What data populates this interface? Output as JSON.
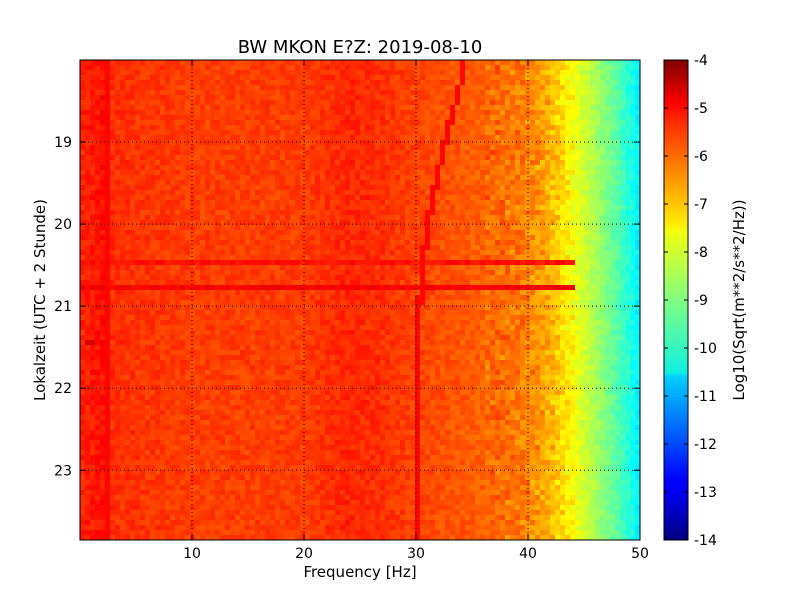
{
  "chart_data": {
    "type": "heatmap",
    "title": "BW MKON E?Z: 2019-08-10",
    "xlabel": "Frequency [Hz]",
    "ylabel": "Lokalzeit (UTC + 2 Stunde)",
    "xlim": [
      0,
      50
    ],
    "ylim": [
      18.0,
      23.85
    ],
    "y_inverted": true,
    "x_ticks": [
      "10",
      "20",
      "30",
      "40",
      "50"
    ],
    "y_ticks": [
      "19",
      "20",
      "21",
      "22",
      "23"
    ],
    "grid": true,
    "colormap": "jet",
    "colorbar": {
      "label": "Log10(Sqrt(m**2/s**2/Hz))",
      "range": [
        -14,
        -4
      ],
      "ticks": [
        "-4",
        "-5",
        "-6",
        "-7",
        "-8",
        "-9",
        "-10",
        "-11",
        "-12",
        "-13",
        "-14"
      ]
    },
    "spectral_level_profile": [
      {
        "freq_hz": 0,
        "log10_psd": -5.6
      },
      {
        "freq_hz": 2,
        "log10_psd": -5.4
      },
      {
        "freq_hz": 3,
        "log10_psd": -5.7
      },
      {
        "freq_hz": 10,
        "log10_psd": -5.85
      },
      {
        "freq_hz": 20,
        "log10_psd": -5.85
      },
      {
        "freq_hz": 24,
        "log10_psd": -5.6
      },
      {
        "freq_hz": 27,
        "log10_psd": -5.7
      },
      {
        "freq_hz": 30,
        "log10_psd": -5.9
      },
      {
        "freq_hz": 36,
        "log10_psd": -6.2
      },
      {
        "freq_hz": 40,
        "log10_psd": -6.5
      },
      {
        "freq_hz": 42,
        "log10_psd": -7.0
      },
      {
        "freq_hz": 44,
        "log10_psd": -7.8
      },
      {
        "freq_hz": 46,
        "log10_psd": -8.6
      },
      {
        "freq_hz": 48,
        "log10_psd": -9.4
      },
      {
        "freq_hz": 50,
        "log10_psd": -10.4
      }
    ],
    "features": [
      {
        "kind": "horizontal-band",
        "time_h": 20.45,
        "log10_psd": -5.4
      },
      {
        "kind": "horizontal-band",
        "time_h": 20.75,
        "log10_psd": -5.2
      },
      {
        "kind": "drifting-line",
        "points": [
          {
            "time_h": 18.1,
            "freq_hz": 34.3
          },
          {
            "time_h": 19.0,
            "freq_hz": 32.6
          },
          {
            "time_h": 20.0,
            "freq_hz": 31.0
          },
          {
            "time_h": 21.0,
            "freq_hz": 30.3
          },
          {
            "time_h": 22.0,
            "freq_hz": 30.1
          },
          {
            "time_h": 23.8,
            "freq_hz": 30.0
          }
        ],
        "log10_psd": -5.3
      },
      {
        "kind": "vertical-line",
        "freq_hz": 2.5,
        "log10_psd": -5.3
      },
      {
        "kind": "burst",
        "time_h": 21.45,
        "freq_from_hz": 0.3,
        "freq_to_hz": 1.3,
        "log10_psd": -4.9
      }
    ]
  }
}
